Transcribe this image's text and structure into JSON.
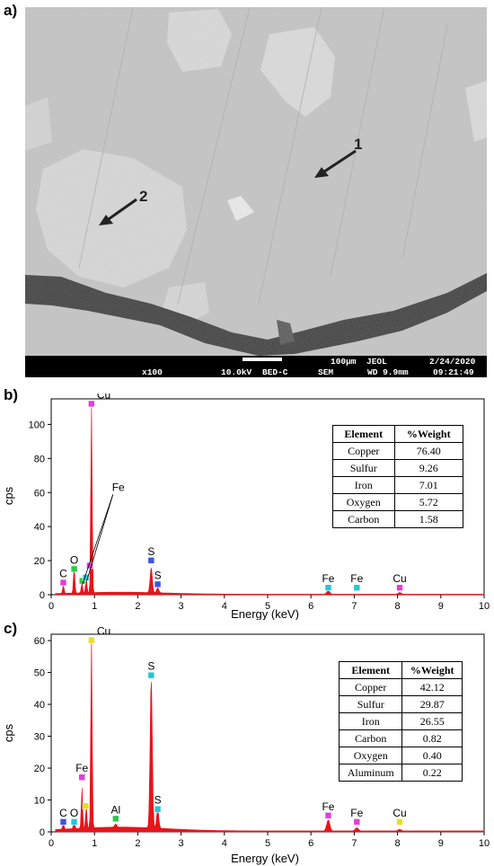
{
  "panel_labels": [
    "a)",
    "b)",
    "c)"
  ],
  "sem": {
    "arrow_labels": [
      "1",
      "2"
    ],
    "footer": {
      "scale": "100µm",
      "maker": "JEOL",
      "date": "2/24/2020",
      "mag": "x100",
      "voltage": "10.0kV",
      "detector": "BED-C",
      "mode": "SEM",
      "wd": "WD 9.9mm",
      "time": "09:21:49"
    }
  },
  "colors": {
    "spectrum_fill": "#e8141b",
    "sem_bg": "#c9c9c9",
    "footer_bg": "#000000"
  },
  "chart_data": [
    {
      "type": "area",
      "xlabel": "Energy (keV)",
      "ylabel": "cps",
      "xlim": [
        0,
        10
      ],
      "ylim": [
        0,
        115
      ],
      "xticks": [
        0,
        1,
        2,
        3,
        4,
        5,
        6,
        7,
        8,
        9,
        10
      ],
      "yticks": [
        0,
        20,
        40,
        60,
        80,
        100
      ],
      "peaks": [
        {
          "x": 0.28,
          "y": 5
        },
        {
          "x": 0.53,
          "y": 16
        },
        {
          "x": 0.71,
          "y": 6
        },
        {
          "x": 0.81,
          "y": 9
        },
        {
          "x": 0.93,
          "y": 111
        },
        {
          "x": 2.31,
          "y": 15
        },
        {
          "x": 2.46,
          "y": 3
        },
        {
          "x": 6.4,
          "y": 2
        },
        {
          "x": 8.05,
          "y": 1
        }
      ],
      "markers": [
        {
          "label": "C",
          "x": 0.28,
          "y": 5,
          "color": "#e040d8"
        },
        {
          "label": "O",
          "x": 0.53,
          "y": 13,
          "color": "#2cc84a"
        },
        {
          "label": "",
          "x": 0.72,
          "y": 6,
          "color": "#2cc84a"
        },
        {
          "label": "",
          "x": 0.8,
          "y": 8,
          "color": "#20c8d8"
        },
        {
          "label": "",
          "x": 0.89,
          "y": 15,
          "color": "#e040d8"
        },
        {
          "label": "Cu",
          "x": 0.93,
          "y": 110,
          "color": "#e040d8"
        },
        {
          "label": "S",
          "x": 2.31,
          "y": 18,
          "color": "#3a55e8"
        },
        {
          "label": "S",
          "x": 2.46,
          "y": 4,
          "color": "#3a55e8"
        },
        {
          "label": "Fe",
          "x": 6.4,
          "y": 2,
          "color": "#20c8d8"
        },
        {
          "label": "Fe",
          "x": 7.06,
          "y": 2,
          "color": "#20c8d8"
        },
        {
          "label": "Cu",
          "x": 8.05,
          "y": 2,
          "color": "#e040d8"
        }
      ],
      "callout": {
        "label": "Fe"
      },
      "table": {
        "headers": [
          "Element",
          "%Weight"
        ],
        "rows": [
          [
            "Copper",
            "76.40"
          ],
          [
            "Sulfur",
            "9.26"
          ],
          [
            "Iron",
            "7.01"
          ],
          [
            "Oxygen",
            "5.72"
          ],
          [
            "Carbon",
            "1.58"
          ]
        ]
      }
    },
    {
      "type": "area",
      "xlabel": "Energy (keV)",
      "ylabel": "cps",
      "xlim": [
        0,
        10
      ],
      "ylim": [
        0,
        62
      ],
      "xticks": [
        0,
        1,
        2,
        3,
        4,
        5,
        6,
        7,
        8,
        9,
        10
      ],
      "yticks": [
        0,
        10,
        20,
        30,
        40,
        50,
        60
      ],
      "peaks": [
        {
          "x": 0.28,
          "y": 2
        },
        {
          "x": 0.53,
          "y": 3
        },
        {
          "x": 0.71,
          "y": 13
        },
        {
          "x": 0.81,
          "y": 7
        },
        {
          "x": 0.93,
          "y": 60
        },
        {
          "x": 1.49,
          "y": 1
        },
        {
          "x": 2.31,
          "y": 48
        },
        {
          "x": 2.46,
          "y": 6
        },
        {
          "x": 6.4,
          "y": 3.5
        },
        {
          "x": 7.06,
          "y": 1
        },
        {
          "x": 8.05,
          "y": 0.5
        }
      ],
      "markers": [
        {
          "label": "C",
          "x": 0.28,
          "y": 2,
          "color": "#3a55e8"
        },
        {
          "label": "O",
          "x": 0.53,
          "y": 2,
          "color": "#20c8d8"
        },
        {
          "label": "Fe",
          "x": 0.71,
          "y": 16,
          "color": "#e040d8"
        },
        {
          "label": "",
          "x": 0.8,
          "y": 7,
          "color": "#e8e020"
        },
        {
          "label": "Cu",
          "x": 0.93,
          "y": 59,
          "color": "#e8e020"
        },
        {
          "label": "Al",
          "x": 1.49,
          "y": 3,
          "color": "#2cc84a"
        },
        {
          "label": "S",
          "x": 2.31,
          "y": 48,
          "color": "#20c8d8"
        },
        {
          "label": "S",
          "x": 2.46,
          "y": 6,
          "color": "#20c8d8"
        },
        {
          "label": "Fe",
          "x": 6.4,
          "y": 4,
          "color": "#e040d8"
        },
        {
          "label": "Fe",
          "x": 7.06,
          "y": 2,
          "color": "#e040d8"
        },
        {
          "label": "Cu",
          "x": 8.05,
          "y": 2,
          "color": "#e8e020"
        }
      ],
      "table": {
        "headers": [
          "Element",
          "%Weight"
        ],
        "rows": [
          [
            "Copper",
            "42.12"
          ],
          [
            "Sulfur",
            "29.87"
          ],
          [
            "Iron",
            "26.55"
          ],
          [
            "Carbon",
            "0.82"
          ],
          [
            "Oxygen",
            "0.40"
          ],
          [
            "Aluminum",
            "0.22"
          ]
        ]
      }
    }
  ]
}
